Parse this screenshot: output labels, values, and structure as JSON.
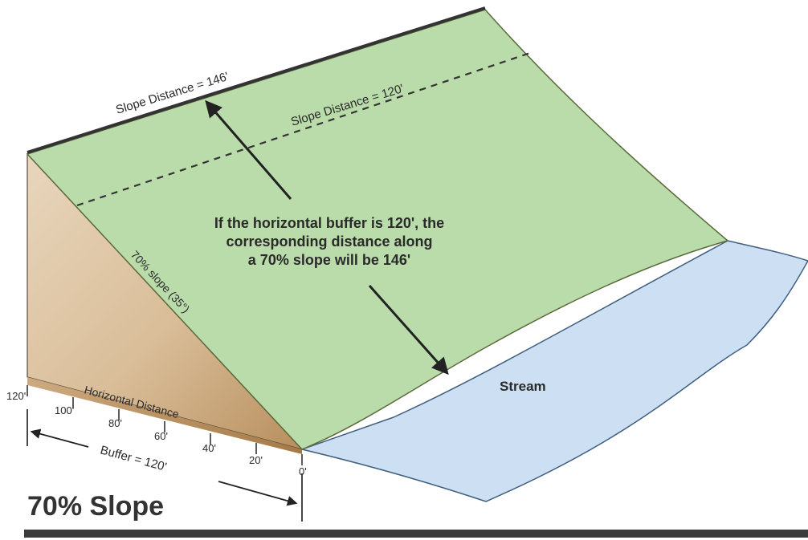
{
  "title": "70% Slope",
  "labels": {
    "slope_distance_top": "Slope Distance = 146'",
    "slope_distance_dashed": "Slope Distance = 120'",
    "slope_percent": "70% slope (35°)",
    "horizontal_distance": "Horizontal Distance",
    "buffer": "Buffer = 120'",
    "stream": "Stream",
    "explanation": [
      "If the horizontal buffer is 120', the",
      "corresponding distance along",
      "a 70% slope will be 146'"
    ]
  },
  "ticks": [
    "120'",
    "100'",
    "80'",
    "60'",
    "40'",
    "20'",
    "0'"
  ],
  "colors": {
    "slope_face": "#b9dcaa",
    "side_face": "#d4b48a",
    "stream": "#cde0f3",
    "outline": "#333333"
  }
}
